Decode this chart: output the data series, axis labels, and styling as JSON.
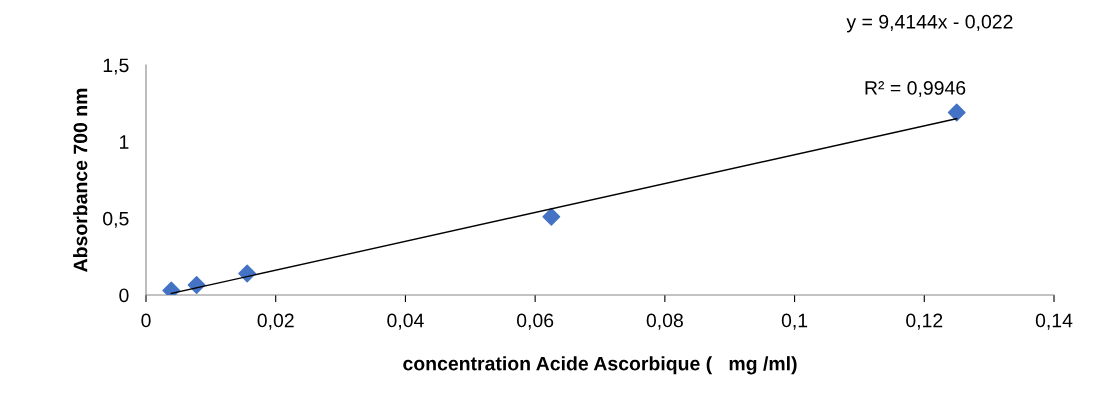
{
  "chart_data": {
    "type": "scatter",
    "xlabel": "concentration Acide Ascorbique (   mg /ml)",
    "ylabel": "Absorbance 700 nm",
    "x": [
      0.0039,
      0.0078,
      0.0156,
      0.0625,
      0.125
    ],
    "series": [
      {
        "color": "#4472c4",
        "marker": "diamond",
        "values": [
          0.03,
          0.065,
          0.14,
          0.51,
          1.19
        ]
      },
      {
        "type": "line",
        "color": "#000000",
        "marker": "none",
        "x": [
          0.0039,
          0.125
        ],
        "values": [
          0.01,
          1.15
        ]
      }
    ],
    "xlim": [
      0,
      0.14
    ],
    "xticks": [
      {
        "value": 0,
        "label": "0"
      },
      {
        "value": 0.02,
        "label": "0,02"
      },
      {
        "value": 0.04,
        "label": "0,04"
      },
      {
        "value": 0.06,
        "label": "0,06"
      },
      {
        "value": 0.08,
        "label": "0,08"
      },
      {
        "value": 0.1,
        "label": "0,1"
      },
      {
        "value": 0.12,
        "label": "0,12"
      },
      {
        "value": 0.14,
        "label": "0,14"
      }
    ],
    "ylim": [
      0,
      1.5
    ],
    "yticks": [
      {
        "value": 0,
        "label": "0"
      },
      {
        "value": 0.5,
        "label": "0,5"
      },
      {
        "value": 1,
        "label": "1"
      },
      {
        "value": 1.5,
        "label": "1,5"
      }
    ],
    "grid": false,
    "legend": false,
    "annotations": [
      "y = 9,4144x - 0,022",
      {
        "text": "R² = 0,9946",
        "x": 0.125,
        "y": 1.19
      }
    ]
  }
}
